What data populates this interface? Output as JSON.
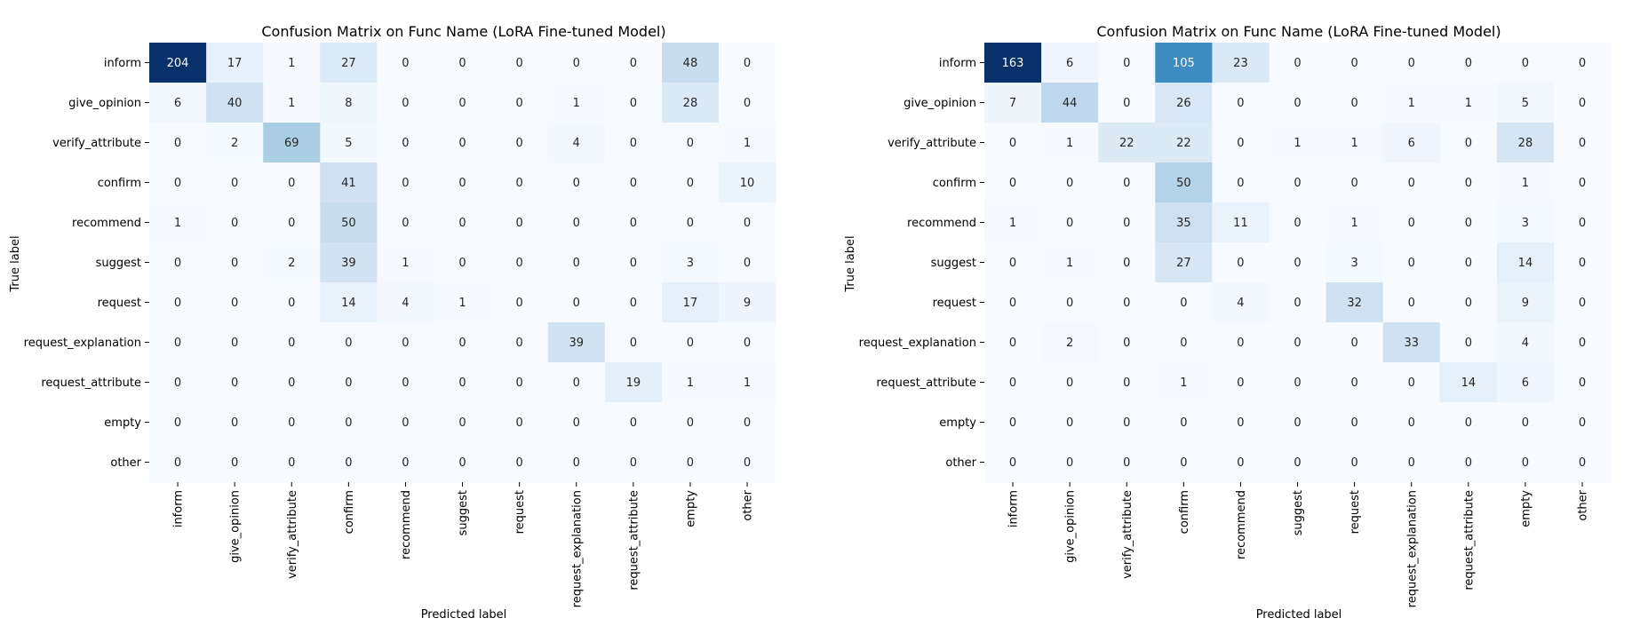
{
  "chart_data": [
    {
      "type": "heatmap",
      "title": "Confusion Matrix on Func Name (LoRA Fine-tuned Model)",
      "xlabel": "Predicted label",
      "ylabel": "True label",
      "colormap": "Blues",
      "colorbar": false,
      "labels": [
        "inform",
        "give_opinion",
        "verify_attribute",
        "confirm",
        "recommend",
        "suggest",
        "request",
        "request_explanation",
        "request_attribute",
        "empty",
        "other"
      ],
      "values": [
        [
          204,
          17,
          1,
          27,
          0,
          0,
          0,
          0,
          0,
          48,
          0
        ],
        [
          6,
          40,
          1,
          8,
          0,
          0,
          0,
          1,
          0,
          28,
          0
        ],
        [
          0,
          2,
          69,
          5,
          0,
          0,
          0,
          4,
          0,
          0,
          1
        ],
        [
          0,
          0,
          0,
          41,
          0,
          0,
          0,
          0,
          0,
          0,
          10
        ],
        [
          1,
          0,
          0,
          50,
          0,
          0,
          0,
          0,
          0,
          0,
          0
        ],
        [
          0,
          0,
          2,
          39,
          1,
          0,
          0,
          0,
          0,
          3,
          0
        ],
        [
          0,
          0,
          0,
          14,
          4,
          1,
          0,
          0,
          0,
          17,
          9
        ],
        [
          0,
          0,
          0,
          0,
          0,
          0,
          0,
          39,
          0,
          0,
          0
        ],
        [
          0,
          0,
          0,
          0,
          0,
          0,
          0,
          0,
          19,
          1,
          1
        ],
        [
          0,
          0,
          0,
          0,
          0,
          0,
          0,
          0,
          0,
          0,
          0
        ],
        [
          0,
          0,
          0,
          0,
          0,
          0,
          0,
          0,
          0,
          0,
          0
        ]
      ]
    },
    {
      "type": "heatmap",
      "title": "Confusion Matrix on Func Name (LoRA Fine-tuned Model)",
      "xlabel": "Predicted label",
      "ylabel": "True label",
      "colormap": "Blues",
      "colorbar": false,
      "labels": [
        "inform",
        "give_opinion",
        "verify_attribute",
        "confirm",
        "recommend",
        "suggest",
        "request",
        "request_explanation",
        "request_attribute",
        "empty",
        "other"
      ],
      "values": [
        [
          163,
          6,
          0,
          105,
          23,
          0,
          0,
          0,
          0,
          0,
          0
        ],
        [
          7,
          44,
          0,
          26,
          0,
          0,
          0,
          1,
          1,
          5,
          0
        ],
        [
          0,
          1,
          22,
          22,
          0,
          1,
          1,
          6,
          0,
          28,
          0
        ],
        [
          0,
          0,
          0,
          50,
          0,
          0,
          0,
          0,
          0,
          1,
          0
        ],
        [
          1,
          0,
          0,
          35,
          11,
          0,
          1,
          0,
          0,
          3,
          0
        ],
        [
          0,
          1,
          0,
          27,
          0,
          0,
          3,
          0,
          0,
          14,
          0
        ],
        [
          0,
          0,
          0,
          0,
          4,
          0,
          32,
          0,
          0,
          9,
          0
        ],
        [
          0,
          2,
          0,
          0,
          0,
          0,
          0,
          33,
          0,
          4,
          0
        ],
        [
          0,
          0,
          0,
          1,
          0,
          0,
          0,
          0,
          14,
          6,
          0
        ],
        [
          0,
          0,
          0,
          0,
          0,
          0,
          0,
          0,
          0,
          0,
          0
        ],
        [
          0,
          0,
          0,
          0,
          0,
          0,
          0,
          0,
          0,
          0,
          0
        ]
      ]
    }
  ]
}
